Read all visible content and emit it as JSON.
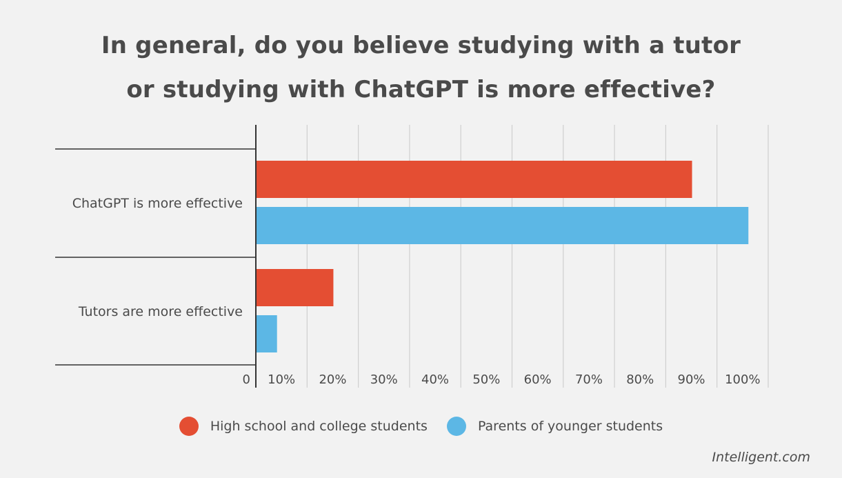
{
  "title_line1": "In general, do you believe studying with a tutor",
  "title_line2": "or studying with ChatGPT is more effective?",
  "source": "Intelligent.com",
  "chart_data": {
    "type": "bar",
    "orientation": "horizontal",
    "title": "In general, do you believe studying with a tutor or studying with ChatGPT is more effective?",
    "categories": [
      "ChatGPT is more effective",
      "Tutors are more effective"
    ],
    "series": [
      {
        "name": "High school and college students",
        "values": [
          85,
          15
        ],
        "color": "#e44e33"
      },
      {
        "name": "Parents of younger students",
        "values": [
          96,
          4
        ],
        "color": "#5cb7e5"
      }
    ],
    "x_tick_labels": [
      "0",
      "10%",
      "20%",
      "30%",
      "40%",
      "50%",
      "60%",
      "70%",
      "80%",
      "90%",
      "100%"
    ],
    "xlim": [
      0,
      100
    ],
    "grid": true,
    "legend": "bottom"
  }
}
